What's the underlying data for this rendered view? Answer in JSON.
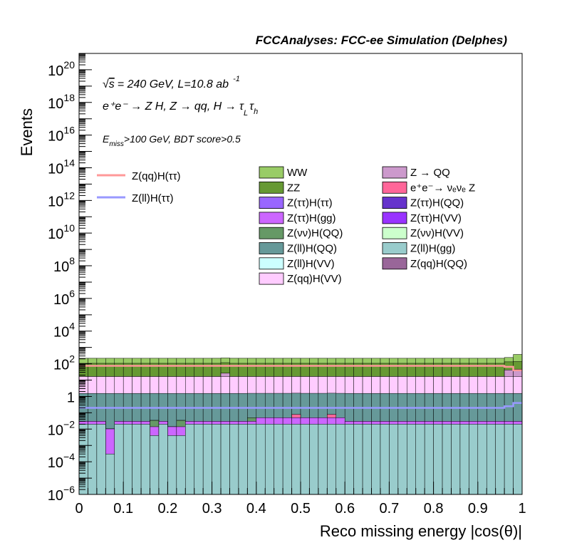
{
  "chart_data": {
    "type": "area",
    "title": "FCCAnalyses: FCC-ee Simulation (Delphes)",
    "xlabel": "Reco missing energy |cos(θ)|",
    "ylabel": "Events",
    "xlim": [
      0,
      1
    ],
    "ylim": [
      1e-06,
      1e+21
    ],
    "log_y": true,
    "grid": false,
    "x_ticks": [
      "0",
      "0.1",
      "0.2",
      "0.3",
      "0.4",
      "0.5",
      "0.6",
      "0.7",
      "0.8",
      "0.9",
      "1"
    ],
    "y_ticks": [
      {
        "base": "10",
        "exp": "−6",
        "value": 1e-06
      },
      {
        "base": "10",
        "exp": "−4",
        "value": 0.0001
      },
      {
        "base": "10",
        "exp": "−2",
        "value": 0.01
      },
      {
        "base": "1",
        "exp": "",
        "value": 1
      },
      {
        "base": "10",
        "exp": "2",
        "value": 100.0
      },
      {
        "base": "10",
        "exp": "4",
        "value": 10000.0
      },
      {
        "base": "10",
        "exp": "6",
        "value": 1000000.0
      },
      {
        "base": "10",
        "exp": "8",
        "value": 100000000.0
      },
      {
        "base": "10",
        "exp": "10",
        "value": 10000000000.0
      },
      {
        "base": "10",
        "exp": "12",
        "value": 1000000000000.0
      },
      {
        "base": "10",
        "exp": "14",
        "value": 100000000000000.0
      },
      {
        "base": "10",
        "exp": "16",
        "value": 1e+16
      },
      {
        "base": "10",
        "exp": "18",
        "value": 1e+18
      },
      {
        "base": "10",
        "exp": "20",
        "value": 1e+20
      }
    ],
    "annotations": {
      "energy": "= 240 GeV, L=10.8 ab",
      "lumi_exp": "-1",
      "process": "e⁺e⁻ → Z H, Z → qq, H → τ",
      "process_tau1_sub": "L",
      "process_tau2_sub": "h",
      "cuts_prefix": "E",
      "cuts_sub": "miss",
      "cuts_suffix": ">100 GeV, BDT score>0.5"
    },
    "legend_position": "top",
    "stack_legend": [
      {
        "label": "WW",
        "color": "#99cc66"
      },
      {
        "label": "ZZ",
        "color": "#669933"
      },
      {
        "label": "Z(ττ)H(ττ)",
        "color": "#9966ff"
      },
      {
        "label": "Z(ττ)H(gg)",
        "color": "#cc66ff"
      },
      {
        "label": "Z(νν)H(QQ)",
        "color": "#669966"
      },
      {
        "label": "Z(ll)H(QQ)",
        "color": "#669999"
      },
      {
        "label": "Z(ll)H(VV)",
        "color": "#ccffff"
      },
      {
        "label": "Z(qq)H(VV)",
        "color": "#ffccff"
      },
      {
        "label": "Z → QQ",
        "color": "#cc99cc"
      },
      {
        "label": "e⁺e⁻→ νₑνₑ Z",
        "color": "#ff6699"
      },
      {
        "label": "Z(ττ)H(QQ)",
        "color": "#6633cc"
      },
      {
        "label": "Z(ττ)H(VV)",
        "color": "#9933ff"
      },
      {
        "label": "Z(νν)H(VV)",
        "color": "#ccffcc"
      },
      {
        "label": "Z(ll)H(gg)",
        "color": "#99cccc"
      },
      {
        "label": "Z(qq)H(QQ)",
        "color": "#996699"
      }
    ],
    "signal_legend": [
      {
        "label": "Z(qq)H(ττ)",
        "color": "#ff9999"
      },
      {
        "label": "Z(ll)H(ττ)",
        "color": "#9999ff"
      }
    ],
    "bins_x_edges_step": 0.02,
    "stack_totals": [
      220,
      220,
      210,
      220,
      215,
      215,
      215,
      210,
      220,
      210,
      215,
      215,
      215,
      215,
      215,
      220,
      220,
      220,
      220,
      220,
      220,
      220,
      215,
      220,
      220,
      215,
      220,
      220,
      215,
      220,
      210,
      215,
      210,
      215,
      215,
      215,
      215,
      215,
      215,
      215,
      215,
      220,
      220,
      215,
      220,
      215,
      220,
      220,
      215,
      380
    ],
    "layers": [
      {
        "name": "Z(ll)H(gg)",
        "color": "#99cccc",
        "values": [
          0.02,
          0.02,
          0.02,
          0.0003,
          0.02,
          0.02,
          0.02,
          0.02,
          0.004,
          0.02,
          0.004,
          0.004,
          0.02,
          0.02,
          0.02,
          0.02,
          0.02,
          0.02,
          0.02,
          0.02,
          0.02,
          0.02,
          0.02,
          0.02,
          0.02,
          0.02,
          0.02,
          0.02,
          0.02,
          0.02,
          0.02,
          0.02,
          0.02,
          0.02,
          0.02,
          0.02,
          0.02,
          0.02,
          0.02,
          0.02,
          0.02,
          0.02,
          0.02,
          0.02,
          0.02,
          0.02,
          0.02,
          0.02,
          0.02,
          0.02
        ]
      },
      {
        "name": "Z(ττ)H(gg)",
        "color": "#cc66ff",
        "values": [
          0.01,
          0.01,
          0.01,
          0.01,
          0.01,
          0.01,
          0.01,
          0.01,
          0.01,
          0.01,
          0.01,
          0.01,
          0.01,
          0.01,
          0.01,
          0.01,
          0.01,
          0.01,
          0.01,
          0.01,
          0.03,
          0.03,
          0.03,
          0.03,
          0.03,
          0.03,
          0.03,
          0.03,
          0.03,
          0.03,
          0.01,
          0.01,
          0.01,
          0.01,
          0.01,
          0.01,
          0.01,
          0.01,
          0.01,
          0.01,
          0.01,
          0.01,
          0.01,
          0.01,
          0.01,
          0.01,
          0.01,
          0.01,
          0.01,
          0.01
        ]
      },
      {
        "name": "Z(νν)H(QQ)",
        "color": "#669966",
        "values": [
          0,
          0,
          0,
          0,
          0,
          0,
          0,
          0,
          0.02,
          0,
          0,
          0.02,
          0,
          0,
          0,
          0,
          0,
          0,
          0,
          0.02,
          0,
          0,
          0,
          0,
          0,
          0,
          0,
          0,
          0,
          0,
          0,
          0,
          0,
          0,
          0,
          0,
          0,
          0,
          0,
          0,
          0,
          0,
          0,
          0,
          0,
          0,
          0,
          0,
          0,
          0
        ]
      },
      {
        "name": "Z(qq)H(QQ)",
        "color": "#996699",
        "values": [
          0,
          0,
          0,
          0,
          0,
          0,
          0,
          0,
          0,
          0,
          0,
          0,
          0,
          0,
          0,
          0,
          0,
          0,
          0,
          0.0001,
          0,
          0,
          0,
          0,
          0,
          0,
          0,
          0,
          0,
          0,
          0,
          0,
          0,
          0,
          0,
          0,
          0,
          0,
          0,
          0,
          0,
          0,
          0,
          0,
          0,
          0,
          0,
          0,
          0,
          0
        ]
      },
      {
        "name": "e⁺e⁻→ νₑνₑ Z",
        "color": "#ff6699",
        "values": [
          0,
          0,
          0,
          0,
          0,
          0,
          0,
          0,
          0,
          0,
          0,
          0,
          0,
          0,
          0,
          0,
          0,
          0,
          0,
          0,
          0,
          0,
          0,
          0,
          0.03,
          0,
          0,
          0,
          0.03,
          0,
          0,
          0,
          0,
          0,
          0,
          0,
          0,
          0,
          0,
          0,
          0,
          0,
          0,
          0,
          0,
          0,
          0,
          0,
          0,
          0
        ]
      },
      {
        "name": "Z(ll)H(QQ)",
        "color": "#669999",
        "values": [
          1.5,
          1.5,
          1.5,
          1.5,
          1.5,
          1.5,
          1.5,
          1.5,
          1.5,
          1.5,
          1.5,
          1.5,
          1.5,
          1.5,
          1.5,
          1.5,
          1.5,
          1.5,
          1.5,
          1.5,
          1.5,
          1.5,
          1.5,
          1.5,
          1.5,
          1.5,
          1.5,
          1.5,
          1.5,
          1.5,
          1.5,
          1.5,
          1.5,
          1.5,
          1.5,
          1.5,
          1.5,
          1.5,
          1.5,
          1.5,
          1.5,
          1.5,
          1.5,
          1.5,
          1.5,
          1.5,
          1.5,
          1.5,
          1.5,
          1.5
        ]
      },
      {
        "name": "Z(qq)H(VV)",
        "color": "#ffccff",
        "values": [
          15,
          15,
          15,
          15,
          15,
          15,
          15,
          15,
          15,
          15,
          15,
          15,
          15,
          15,
          15,
          15,
          15,
          15,
          15,
          15,
          15,
          15,
          15,
          15,
          15,
          15,
          15,
          15,
          15,
          15,
          15,
          15,
          15,
          15,
          15,
          15,
          15,
          15,
          15,
          15,
          15,
          15,
          15,
          15,
          15,
          15,
          15,
          15,
          15,
          15
        ]
      },
      {
        "name": "Z → QQ",
        "color": "#cc99cc",
        "values": [
          0,
          0,
          0,
          0,
          0,
          0,
          0,
          0,
          0,
          0,
          0,
          0,
          0,
          0,
          0,
          0,
          10,
          0,
          0,
          0,
          0,
          0,
          0,
          0,
          0,
          0,
          0,
          0,
          0,
          0,
          0,
          0,
          0,
          0,
          0,
          0,
          0,
          0,
          0,
          0,
          0,
          0,
          0,
          0,
          0,
          0,
          0,
          0,
          25,
          30
        ]
      },
      {
        "name": "ZZ",
        "color": "#669933",
        "values": [
          90,
          90,
          90,
          90,
          90,
          90,
          90,
          90,
          90,
          90,
          90,
          90,
          90,
          90,
          90,
          90,
          90,
          90,
          90,
          90,
          90,
          90,
          90,
          90,
          90,
          90,
          90,
          90,
          90,
          90,
          90,
          90,
          90,
          90,
          90,
          90,
          90,
          90,
          90,
          90,
          90,
          90,
          90,
          90,
          90,
          90,
          90,
          90,
          90,
          90
        ]
      },
      {
        "name": "WW",
        "color": "#99cc66",
        "values": [
          110,
          110,
          110,
          110,
          110,
          110,
          110,
          110,
          110,
          110,
          110,
          110,
          110,
          110,
          110,
          110,
          110,
          110,
          110,
          110,
          110,
          110,
          110,
          110,
          110,
          110,
          110,
          110,
          110,
          110,
          110,
          110,
          110,
          110,
          110,
          110,
          110,
          110,
          110,
          110,
          110,
          110,
          110,
          110,
          110,
          110,
          110,
          110,
          110,
          230
        ]
      }
    ],
    "signal_lines": [
      {
        "name": "Z(qq)H(ττ)",
        "color": "#ff9999",
        "values": [
          75,
          75,
          75,
          75,
          75,
          75,
          75,
          75,
          75,
          75,
          75,
          75,
          75,
          75,
          75,
          75,
          75,
          75,
          75,
          75,
          75,
          75,
          75,
          75,
          75,
          75,
          75,
          75,
          75,
          75,
          75,
          75,
          75,
          75,
          75,
          75,
          75,
          75,
          75,
          75,
          75,
          75,
          75,
          75,
          75,
          75,
          75,
          75,
          65,
          40
        ]
      },
      {
        "name": "Z(ll)H(ττ)",
        "color": "#9999ff",
        "values": [
          0.2,
          0.2,
          0.2,
          0.2,
          0.2,
          0.2,
          0.2,
          0.2,
          0.2,
          0.2,
          0.2,
          0.2,
          0.2,
          0.2,
          0.2,
          0.2,
          0.2,
          0.2,
          0.2,
          0.2,
          0.2,
          0.2,
          0.2,
          0.2,
          0.2,
          0.2,
          0.2,
          0.2,
          0.2,
          0.2,
          0.2,
          0.2,
          0.2,
          0.2,
          0.2,
          0.2,
          0.2,
          0.2,
          0.2,
          0.2,
          0.2,
          0.2,
          0.2,
          0.2,
          0.2,
          0.2,
          0.2,
          0.2,
          0.25,
          0.4
        ]
      }
    ]
  }
}
